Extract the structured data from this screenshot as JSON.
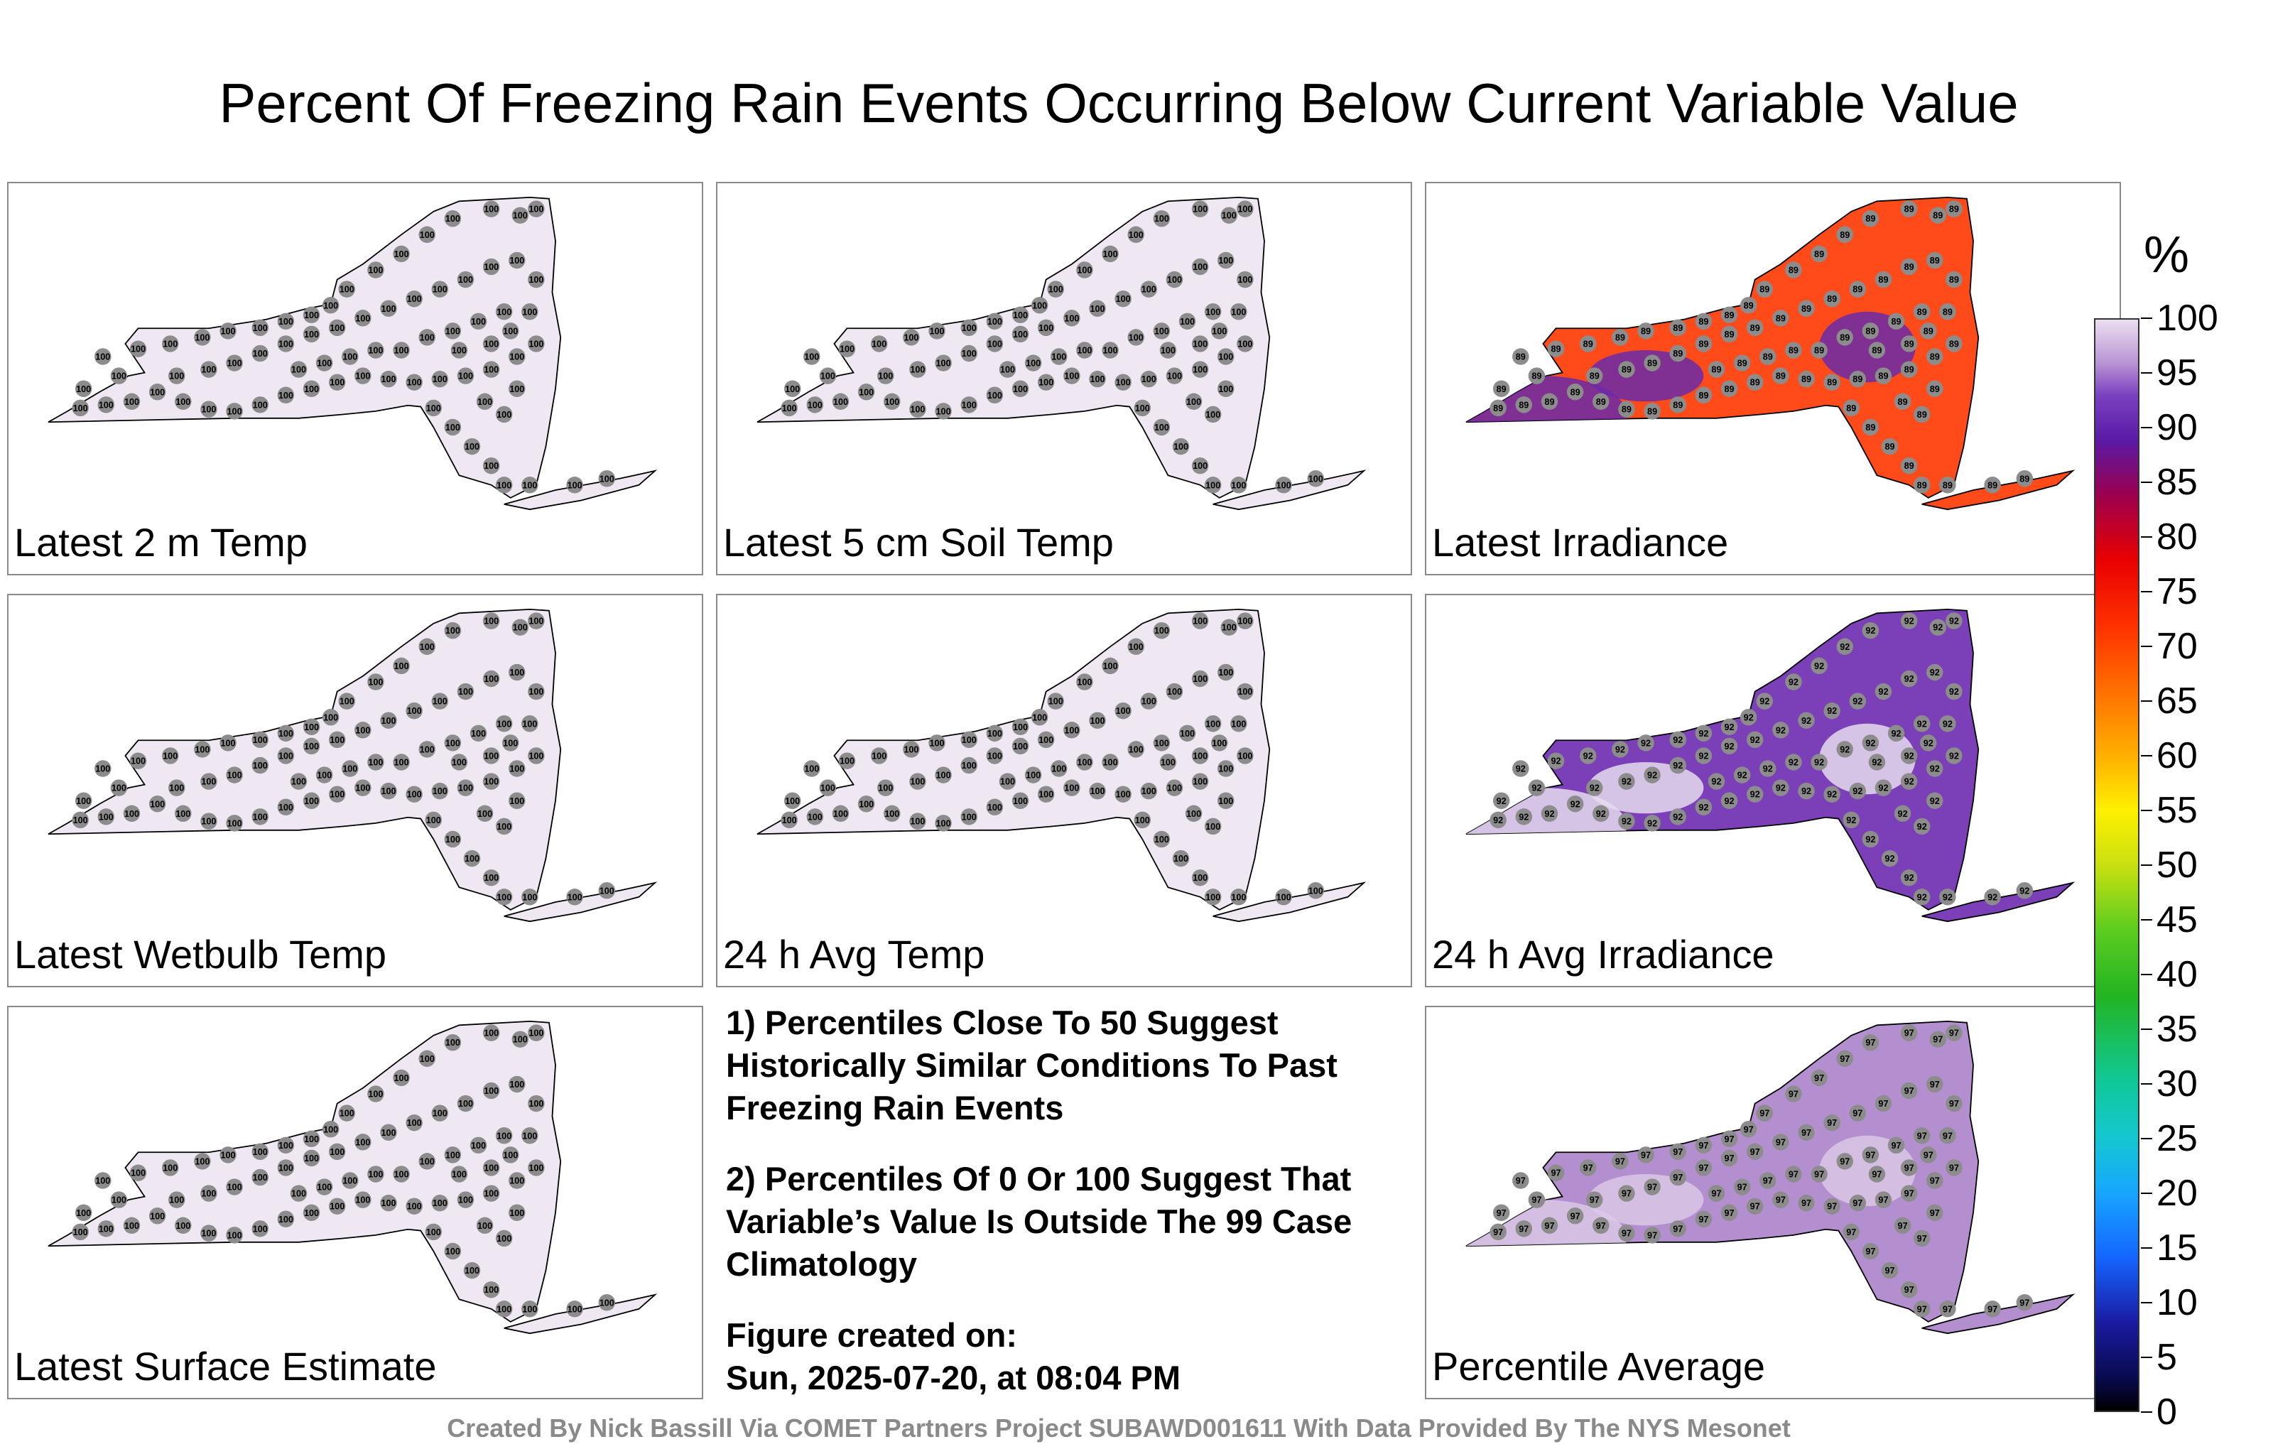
{
  "title": "Percent Of Freezing Rain Events Occurring Below Current Variable Value",
  "unit": "%",
  "colorbar_ticks": [
    "100",
    "95",
    "90",
    "85",
    "80",
    "75",
    "70",
    "65",
    "60",
    "55",
    "50",
    "45",
    "40",
    "35",
    "30",
    "25",
    "20",
    "15",
    "10",
    "5",
    "0"
  ],
  "panels": [
    {
      "label": "Latest 2 m Temp",
      "fill": "#efe8f2",
      "station_value": "100"
    },
    {
      "label": "Latest 5 cm Soil Temp",
      "fill": "#efe8f2",
      "station_value": "100"
    },
    {
      "label": "Latest Irradiance",
      "fill": "#ff4a1a",
      "accent": "#6a2aa8",
      "station_value": "89"
    },
    {
      "label": "Latest Wetbulb Temp",
      "fill": "#efe8f2",
      "station_value": "100"
    },
    {
      "label": "24 h Avg Temp",
      "fill": "#efe8f2",
      "station_value": "100"
    },
    {
      "label": "24 h Avg Irradiance",
      "fill": "#7b3fb8",
      "accent": "#e6dcee",
      "station_value": "92"
    },
    {
      "label": "Latest Surface Estimate",
      "fill": "#efe8f2",
      "station_value": "100"
    },
    {
      "label": "Percentile Average",
      "fill": "#b48fd0",
      "accent": "#d9c8e6",
      "station_value": "97"
    }
  ],
  "notes": {
    "note1": "1) Percentiles Close To 50 Suggest Historically Similar Conditions To Past Freezing Rain Events",
    "note2": "2) Percentiles Of 0 Or 100 Suggest That Variable’s Value Is Outside The 99 Case Climatology",
    "created_label": "Figure created on:",
    "created_value": "Sun, 2025-07-20, at 08:04 PM"
  },
  "footer": "Created By Nick Bassill Via COMET Partners Project SUBAWD001611 With Data Provided By The NYS Mesonet"
}
